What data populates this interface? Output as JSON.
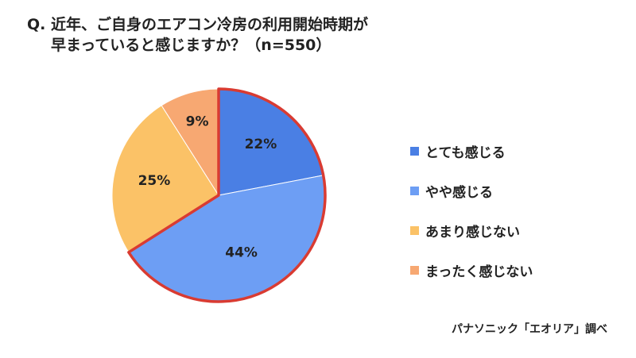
{
  "title": {
    "prefix": "Q.",
    "line1": "近年、ご自身のエアコン冷房の利用開始時期が",
    "line2": "早まっていると感じますか？（n=550）"
  },
  "source": "パナソニック「エオリア」調べ",
  "chart_data": {
    "type": "pie",
    "title": "Q. 近年、ご自身のエアコン冷房の利用開始時期が早まっていると感じますか？（n=550）",
    "categories": [
      "とても感じる",
      "やや感じる",
      "あまり感じない",
      "まったく感じない"
    ],
    "values": [
      22,
      44,
      25,
      9
    ],
    "labels": [
      "22%",
      "44%",
      "25%",
      "9%"
    ],
    "colors": [
      "#4a7fe4",
      "#6d9ef4",
      "#fbc267",
      "#f7a872"
    ],
    "start_angle_deg": 0,
    "direction": "clockwise",
    "highlight": {
      "categories": [
        "とても感じる",
        "やや感じる"
      ],
      "outline_color": "#d93b32"
    },
    "legend_position": "right"
  }
}
